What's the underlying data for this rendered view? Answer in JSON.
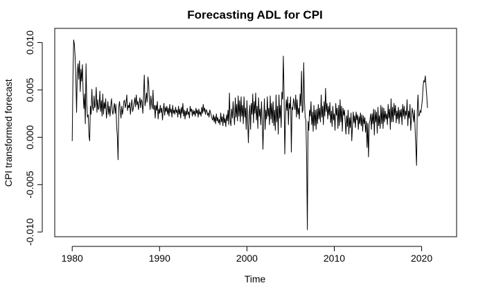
{
  "chart_data": {
    "type": "line",
    "title": "Forecasting ADL for CPI",
    "xlabel": "Time",
    "ylabel": "CPI transformed forecast",
    "xlim": [
      1978,
      2024
    ],
    "ylim": [
      -0.0105,
      0.0115
    ],
    "x_ticks": [
      1980,
      1990,
      2000,
      2010,
      2020
    ],
    "y_ticks": [
      -0.01,
      -0.005,
      0.0,
      0.005,
      0.01
    ],
    "x_tick_labels": [
      "1980",
      "1990",
      "2000",
      "2010",
      "2020"
    ],
    "y_tick_labels": [
      "-0.010",
      "-0.005",
      "0.000",
      "0.005",
      "0.010"
    ],
    "grid": false,
    "line_color": "#000000",
    "series": [
      {
        "x_start": 1980.0,
        "x_step": 0.08333333333333333,
        "values": [
          -0.0004,
          0.0062,
          0.0103,
          0.0098,
          0.0085,
          0.0062,
          0.0026,
          0.0068,
          0.0078,
          0.0061,
          0.0081,
          0.0048,
          0.0072,
          0.0059,
          0.0077,
          0.0048,
          0.003,
          0.0046,
          0.0014,
          0.0078,
          0.0035,
          0.0021,
          0.0024,
          0.0002,
          -0.0004,
          0.0033,
          0.0024,
          0.0051,
          0.0032,
          0.0028,
          0.0044,
          0.0031,
          0.0035,
          0.0053,
          0.0026,
          0.004,
          0.0029,
          0.0032,
          0.0049,
          0.0027,
          0.0039,
          0.0022,
          0.0046,
          0.0024,
          0.0037,
          0.003,
          0.0041,
          0.002,
          0.0028,
          0.0038,
          0.0024,
          0.0033,
          0.0022,
          0.0034,
          0.0041,
          0.0028,
          0.0024,
          0.0032,
          0.0036,
          0.0025,
          0.0035,
          0.0012,
          0.0001,
          -0.0024,
          0.0032,
          0.0038,
          0.0028,
          0.002,
          0.0033,
          0.0024,
          0.003,
          0.0038,
          0.0039,
          0.0031,
          0.0036,
          0.0045,
          0.0028,
          0.0034,
          0.0031,
          0.0037,
          0.0024,
          0.0033,
          0.004,
          0.0027,
          0.0031,
          0.0036,
          0.0042,
          0.0032,
          0.0045,
          0.0034,
          0.0038,
          0.0029,
          0.0036,
          0.0042,
          0.0031,
          0.004,
          0.0037,
          0.0025,
          0.0044,
          0.0066,
          0.0033,
          0.0038,
          0.0047,
          0.0037,
          0.0064,
          0.0057,
          0.004,
          0.0029,
          0.0044,
          0.0036,
          0.003,
          0.005,
          0.0029,
          0.0034,
          0.002,
          0.0034,
          0.0028,
          0.0038,
          0.0019,
          0.003,
          0.0025,
          0.0034,
          0.0026,
          0.0031,
          0.0018,
          0.0029,
          0.0036,
          0.0023,
          0.0032,
          0.0027,
          0.0033,
          0.0024,
          0.0031,
          0.0022,
          0.0035,
          0.0026,
          0.003,
          0.0021,
          0.0034,
          0.0025,
          0.0029,
          0.0024,
          0.0032,
          0.0026,
          0.0029,
          0.0021,
          0.0033,
          0.0024,
          0.003,
          0.002,
          0.0032,
          0.0025,
          0.0036,
          0.0022,
          0.0029,
          0.0019,
          0.0028,
          0.0023,
          0.0031,
          0.0024,
          0.0027,
          0.002,
          0.0033,
          0.0027,
          0.003,
          0.0022,
          0.0029,
          0.0024,
          0.0028,
          0.0022,
          0.0031,
          0.0025,
          0.0029,
          0.0021,
          0.003,
          0.0024,
          0.0027,
          0.0022,
          0.0032,
          0.0025,
          0.0035,
          0.0027,
          0.0031,
          0.0024,
          0.0029,
          0.0028,
          0.0023,
          0.0026,
          0.0021,
          0.0029,
          0.0026,
          0.0023,
          0.002,
          0.0018,
          0.0024,
          0.0016,
          0.0022,
          0.0014,
          0.0025,
          0.0017,
          0.0021,
          0.0015,
          0.0019,
          0.0013,
          0.0026,
          0.0016,
          0.0022,
          0.0012,
          0.0025,
          0.0015,
          0.002,
          0.0011,
          0.0024,
          0.0017,
          0.0029,
          0.0013,
          0.0047,
          0.0018,
          0.0012,
          0.003,
          0.002,
          0.0038,
          0.0024,
          0.0013,
          0.0042,
          0.0021,
          0.0035,
          0.0017,
          0.0044,
          0.0022,
          0.0039,
          0.0016,
          0.0043,
          0.0022,
          0.0034,
          0.0014,
          0.0043,
          0.0021,
          0.0031,
          0.0008,
          0.0039,
          0.0017,
          -0.0006,
          0.0023,
          0.0034,
          0.0008,
          0.0036,
          0.0024,
          0.0046,
          0.0015,
          0.0038,
          0.0025,
          0.0047,
          0.0018,
          0.0033,
          0.0009,
          0.0042,
          0.0022,
          0.003,
          0.0013,
          0.0038,
          0.0018,
          -0.0013,
          0.0018,
          0.0041,
          0.0008,
          0.0029,
          0.0019,
          0.0043,
          0.0022,
          0.0031,
          0.0013,
          0.0044,
          0.0019,
          0.0036,
          0.0015,
          0.0038,
          0.0012,
          0.0029,
          0.0007,
          0.0045,
          0.0016,
          0.0033,
          0.0003,
          0.0045,
          0.002,
          0.0034,
          0.001,
          0.0048,
          0.004,
          0.0086,
          0.0046,
          -0.0018,
          0.002,
          0.004,
          0.0028,
          0.0043,
          0.0013,
          0.0036,
          0.003,
          0.0043,
          -0.0016,
          0.0032,
          0.0029,
          0.0041,
          0.0036,
          0.0029,
          0.0045,
          0.0021,
          0.004,
          0.0024,
          0.0031,
          0.0019,
          0.0046,
          0.0033,
          0.007,
          0.0026,
          0.0029,
          0.0079,
          0.0039,
          0.0021,
          0.0018,
          -0.0023,
          -0.0098,
          0.0017,
          0.0007,
          0.0029,
          0.0022,
          0.0038,
          0.0013,
          0.0027,
          0.0006,
          0.0034,
          0.0012,
          0.0029,
          0.0008,
          0.003,
          0.0014,
          0.0035,
          0.0019,
          0.0031,
          0.0016,
          0.0045,
          0.0021,
          0.0033,
          0.0013,
          0.0038,
          0.0022,
          0.0052,
          0.0027,
          0.0036,
          0.0019,
          0.0033,
          0.0023,
          0.0037,
          0.0015,
          0.0028,
          0.0011,
          0.0033,
          0.0018,
          0.0025,
          0.0007,
          0.0036,
          0.0023,
          0.0031,
          0.0009,
          0.0034,
          0.0012,
          0.004,
          0.0016,
          0.0033,
          0.0006,
          0.0031,
          0.0023,
          0.0029,
          0.0016,
          0.0003,
          0.0023,
          0.0011,
          0.0029,
          0.0003,
          0.0021,
          0.001,
          0.0026,
          -0.0004,
          0.0012,
          0.0027,
          0.0015,
          0.0023,
          0.001,
          0.0027,
          0.0018,
          0.0024,
          0.0008,
          0.0022,
          0.0014,
          0.0026,
          0.0012,
          0.0024,
          0.0006,
          0.0023,
          0.0014,
          0.0021,
          0.0005,
          0.0017,
          -0.0011,
          0.0015,
          -0.0021,
          0.0014,
          0.0018,
          0.0025,
          0.0008,
          0.0025,
          0.0014,
          0.003,
          0.0002,
          0.0029,
          0.0016,
          0.0027,
          0.0004,
          0.0032,
          0.0012,
          0.0023,
          0.0009,
          0.0034,
          0.0014,
          0.0032,
          0.0009,
          0.0031,
          0.0016,
          0.0028,
          0.0019,
          0.0025,
          0.0013,
          0.0035,
          0.002,
          0.003,
          0.0008,
          0.0041,
          0.0016,
          0.0032,
          0.0016,
          0.0036,
          0.0023,
          0.0034,
          0.0015,
          0.0028,
          0.0019,
          0.0032,
          0.0014,
          0.0029,
          0.0021,
          0.003,
          0.0013,
          0.0035,
          0.0022,
          0.0033,
          0.0019,
          0.0028,
          0.0023,
          0.004,
          0.0012,
          0.0028,
          0.002,
          0.0035,
          0.0007,
          0.0021,
          0.0031,
          0.0025,
          0.0016,
          0.0029,
          0.0009,
          -0.001,
          -0.003,
          0.0028,
          0.0045,
          0.0022,
          0.0024,
          0.0028,
          0.0026,
          0.0033,
          0.004,
          0.0054,
          0.006,
          0.0058,
          0.0065,
          0.0054,
          0.0044,
          0.0031
        ]
      }
    ]
  }
}
